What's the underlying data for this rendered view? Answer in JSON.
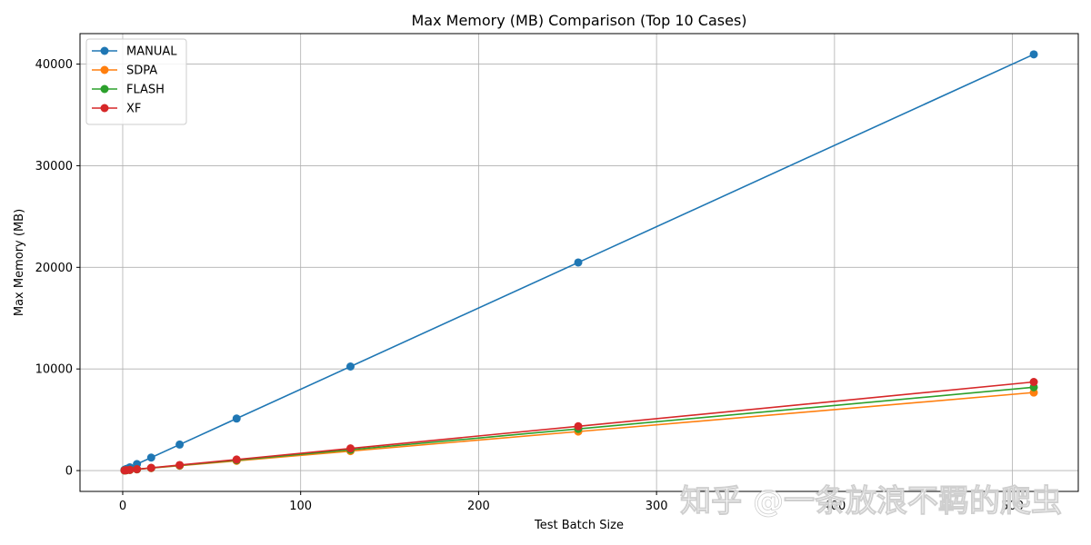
{
  "chart_data": {
    "type": "line",
    "title": "Max Memory (MB) Comparison (Top 10 Cases)",
    "xlabel": "Test Batch Size",
    "ylabel": "Max Memory (MB)",
    "xlim": [
      -24,
      537
    ],
    "ylim": [
      -2050,
      43000
    ],
    "x_ticks": [
      0,
      100,
      200,
      300,
      400,
      500
    ],
    "x_tick_labels": [
      "0",
      "100",
      "200",
      "300",
      "400",
      "500"
    ],
    "y_ticks": [
      0,
      10000,
      20000,
      30000,
      40000
    ],
    "y_tick_labels": [
      "0",
      "10000",
      "20000",
      "30000",
      "40000"
    ],
    "grid": true,
    "legend_position": "upper-left",
    "marker": "circle",
    "x": [
      1,
      2,
      4,
      8,
      16,
      32,
      64,
      128,
      256,
      512
    ],
    "series": [
      {
        "name": "MANUAL",
        "color": "#1f77b4",
        "values": [
          80,
          160,
          320,
          640,
          1280,
          2560,
          5120,
          10240,
          20480,
          40960
        ]
      },
      {
        "name": "SDPA",
        "color": "#ff7f0e",
        "values": [
          15,
          30,
          60,
          120,
          240,
          480,
          960,
          1920,
          3840,
          7680
        ]
      },
      {
        "name": "FLASH",
        "color": "#2ca02c",
        "values": [
          16,
          32,
          64,
          128,
          256,
          512,
          1024,
          2050,
          4100,
          8200
        ]
      },
      {
        "name": "XF",
        "color": "#d62728",
        "values": [
          17,
          34,
          68,
          136,
          272,
          544,
          1088,
          2180,
          4360,
          8720
        ]
      }
    ]
  },
  "watermark": {
    "text": "知乎 @一条放浪不羁的爬虫"
  }
}
